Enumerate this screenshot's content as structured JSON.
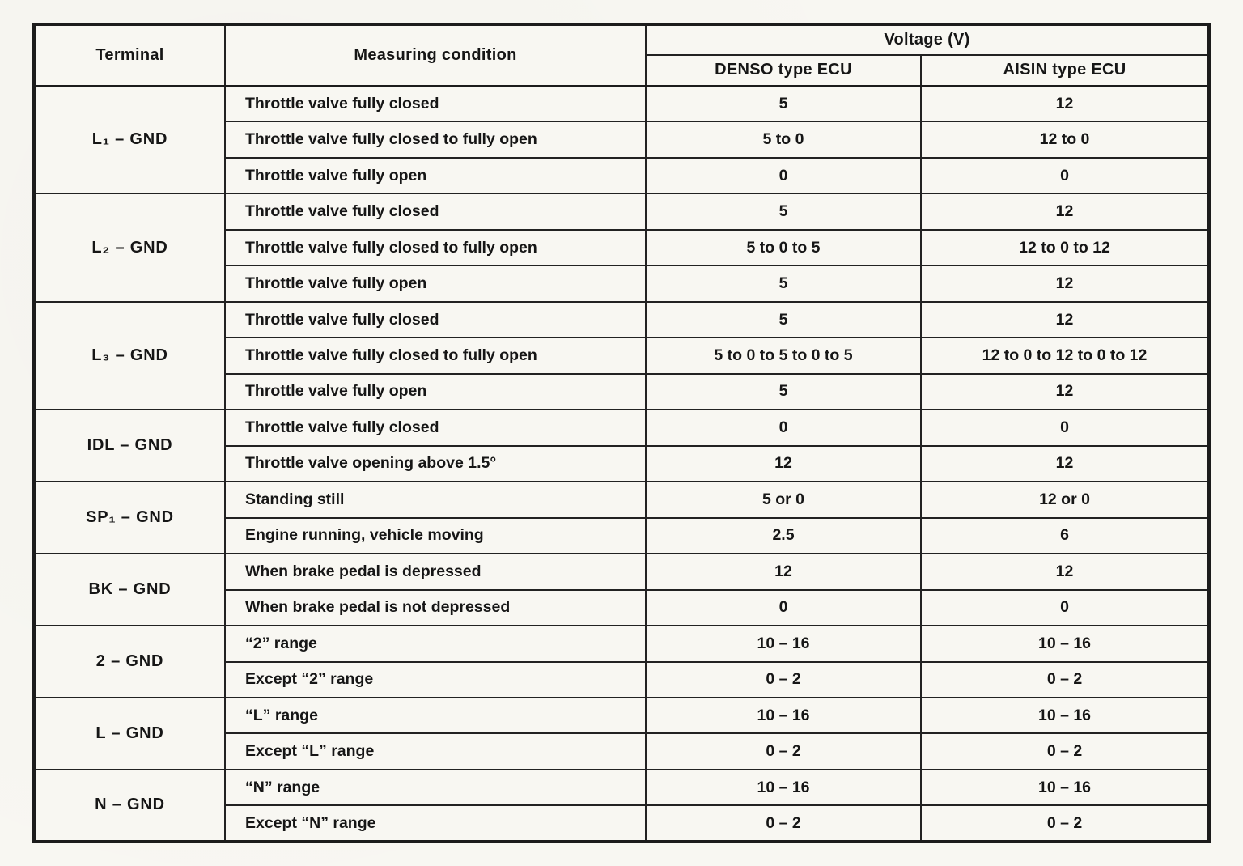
{
  "page": {
    "background": "#f8f7f2",
    "ink": "#1c1c1c"
  },
  "table": {
    "title_row": {
      "terminal": "Terminal",
      "condition": "Measuring condition",
      "voltage": "Voltage (V)",
      "denso": "DENSO type ECU",
      "aisin": "AISIN type ECU"
    },
    "groups": [
      {
        "terminal": "L₁  –  GND",
        "rows": [
          {
            "condition": "Throttle valve fully closed",
            "denso": "5",
            "aisin": "12"
          },
          {
            "condition": "Throttle valve fully closed to fully open",
            "denso": "5 to 0",
            "aisin": "12 to 0"
          },
          {
            "condition": "Throttle valve fully open",
            "denso": "0",
            "aisin": "0"
          }
        ]
      },
      {
        "terminal": "L₂  –  GND",
        "rows": [
          {
            "condition": "Throttle valve fully closed",
            "denso": "5",
            "aisin": "12"
          },
          {
            "condition": "Throttle valve fully closed to fully open",
            "denso": "5 to 0 to 5",
            "aisin": "12 to 0 to 12"
          },
          {
            "condition": "Throttle valve fully open",
            "denso": "5",
            "aisin": "12"
          }
        ]
      },
      {
        "terminal": "L₃  –  GND",
        "rows": [
          {
            "condition": "Throttle valve fully closed",
            "denso": "5",
            "aisin": "12"
          },
          {
            "condition": "Throttle valve fully closed to fully open",
            "denso": "5 to 0 to 5 to 0 to 5",
            "aisin": "12 to 0 to 12 to 0 to 12"
          },
          {
            "condition": "Throttle valve fully open",
            "denso": "5",
            "aisin": "12"
          }
        ]
      },
      {
        "terminal": "IDL  –  GND",
        "rows": [
          {
            "condition": "Throttle valve fully closed",
            "denso": "0",
            "aisin": "0"
          },
          {
            "condition": "Throttle valve opening above 1.5°",
            "denso": "12",
            "aisin": "12"
          }
        ]
      },
      {
        "terminal": "SP₁  –  GND",
        "rows": [
          {
            "condition": "Standing still",
            "denso": "5 or 0",
            "aisin": "12 or 0"
          },
          {
            "condition": "Engine running, vehicle moving",
            "denso": "2.5",
            "aisin": "6"
          }
        ]
      },
      {
        "terminal": "BK  –  GND",
        "rows": [
          {
            "condition": "When brake pedal is depressed",
            "denso": "12",
            "aisin": "12"
          },
          {
            "condition": "When brake pedal is not depressed",
            "denso": "0",
            "aisin": "0"
          }
        ]
      },
      {
        "terminal": "2  –  GND",
        "rows": [
          {
            "condition": "“2” range",
            "denso": "10 – 16",
            "aisin": "10 – 16"
          },
          {
            "condition": "Except “2” range",
            "denso": "0 – 2",
            "aisin": "0 – 2"
          }
        ]
      },
      {
        "terminal": "L  –  GND",
        "rows": [
          {
            "condition": "“L” range",
            "denso": "10 – 16",
            "aisin": "10 – 16"
          },
          {
            "condition": "Except “L” range",
            "denso": "0 – 2",
            "aisin": "0 – 2"
          }
        ]
      },
      {
        "terminal": "N  –  GND",
        "rows": [
          {
            "condition": "“N” range",
            "denso": "10 – 16",
            "aisin": "10 – 16"
          },
          {
            "condition": "Except “N” range",
            "denso": "0 – 2",
            "aisin": "0 – 2"
          }
        ]
      }
    ]
  }
}
